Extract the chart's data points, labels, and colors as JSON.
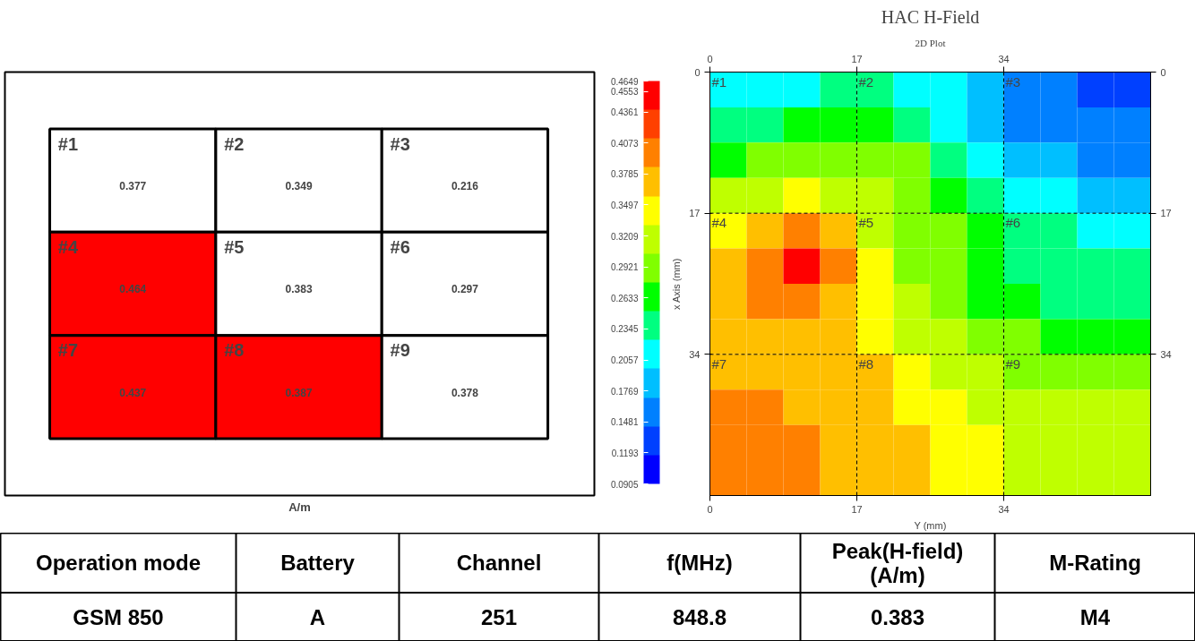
{
  "chart_data": [
    {
      "type": "heatmap",
      "categories": [
        null,
        null,
        null
      ],
      "y_categories": [
        null,
        null,
        null
      ],
      "cells": [
        [
          0.377,
          0.349,
          0.216
        ],
        [
          0.464,
          0.383,
          0.297
        ],
        [
          0.437,
          0.387,
          0.378
        ]
      ],
      "annotations": [
        "#1",
        "#2",
        "#3",
        "#4",
        "#5",
        "#6",
        "#7",
        "#8",
        "#9"
      ],
      "colors": [
        [
          "#ffffff",
          "#ffffff",
          "#ffffff"
        ],
        [
          "#ff0000",
          "#ffffff",
          "#ffffff"
        ],
        [
          "#ff0000",
          "#ff0000",
          "#ffffff"
        ]
      ],
      "data_labels": true,
      "xlabel": "A/m"
    },
    {
      "type": "heatmap",
      "title": "HAC H-Field",
      "subtitle": "2D Plot",
      "xlabel": "Y (mm)",
      "ylabel": "x Axis (mm)",
      "x": [
        2.125,
        6.375,
        10.625,
        14.875,
        19.125,
        23.375,
        27.625,
        31.875,
        36.125,
        40.375,
        44.625,
        48.875
      ],
      "y": [
        2.125,
        6.375,
        10.625,
        14.875,
        19.125,
        23.375,
        27.625,
        31.875,
        36.125,
        40.375,
        44.625,
        48.875
      ],
      "cells": [
        [
          0.2,
          0.21,
          0.22,
          0.23,
          0.23,
          0.22,
          0.2,
          0.18,
          0.16,
          0.15,
          0.14,
          0.14
        ],
        [
          0.23,
          0.25,
          0.26,
          0.27,
          0.26,
          0.25,
          0.22,
          0.19,
          0.17,
          0.16,
          0.15,
          0.15
        ],
        [
          0.27,
          0.29,
          0.3,
          0.3,
          0.29,
          0.28,
          0.25,
          0.21,
          0.19,
          0.18,
          0.17,
          0.17
        ],
        [
          0.31,
          0.33,
          0.34,
          0.33,
          0.31,
          0.29,
          0.27,
          0.24,
          0.22,
          0.2,
          0.19,
          0.19
        ],
        [
          0.35,
          0.38,
          0.4,
          0.38,
          0.33,
          0.3,
          0.28,
          0.26,
          0.24,
          0.23,
          0.22,
          0.21
        ],
        [
          0.37,
          0.41,
          0.44,
          0.4,
          0.34,
          0.3,
          0.28,
          0.26,
          0.25,
          0.24,
          0.23,
          0.23
        ],
        [
          0.37,
          0.4,
          0.41,
          0.38,
          0.34,
          0.31,
          0.29,
          0.27,
          0.26,
          0.25,
          0.25,
          0.25
        ],
        [
          0.37,
          0.38,
          0.38,
          0.37,
          0.35,
          0.33,
          0.31,
          0.29,
          0.28,
          0.27,
          0.27,
          0.27
        ],
        [
          0.38,
          0.38,
          0.37,
          0.37,
          0.36,
          0.34,
          0.32,
          0.31,
          0.3,
          0.29,
          0.29,
          0.29
        ],
        [
          0.39,
          0.4,
          0.38,
          0.37,
          0.36,
          0.35,
          0.34,
          0.33,
          0.32,
          0.31,
          0.31,
          0.31
        ],
        [
          0.4,
          0.41,
          0.39,
          0.38,
          0.37,
          0.36,
          0.35,
          0.34,
          0.33,
          0.32,
          0.32,
          0.32
        ],
        [
          0.4,
          0.41,
          0.4,
          0.38,
          0.37,
          0.36,
          0.35,
          0.34,
          0.33,
          0.32,
          0.32,
          0.32
        ]
      ],
      "xlim": [
        0,
        51
      ],
      "xticks": [
        0,
        17,
        34
      ],
      "x2lim": [
        0,
        51
      ],
      "x2ticks": [
        0,
        17,
        34
      ],
      "ylim": [
        51,
        0
      ],
      "yticks": [
        0,
        17,
        34
      ],
      "y2lim": [
        51,
        0
      ],
      "y2ticks": [
        0,
        17,
        34
      ],
      "clim": [
        0.0905,
        0.4649
      ],
      "cticks": [
        0.0905,
        0.1193,
        0.1481,
        0.1769,
        0.2057,
        0.2345,
        0.2633,
        0.2921,
        0.3209,
        0.3497,
        0.3785,
        0.4073,
        0.4361,
        0.4553,
        0.4649
      ],
      "grid": true,
      "annotations": [
        "#1",
        "#2",
        "#3",
        "#4",
        "#5",
        "#6",
        "#7",
        "#8",
        "#9"
      ]
    },
    {
      "type": "other",
      "annotations": [
        "Operation mode",
        "Battery",
        "Channel",
        "f(MHz)",
        "Peak(H-field)\n(A/m)",
        "M-Rating",
        "GSM 850",
        "A",
        "251",
        "848.8",
        "0.383",
        "M4"
      ]
    }
  ]
}
